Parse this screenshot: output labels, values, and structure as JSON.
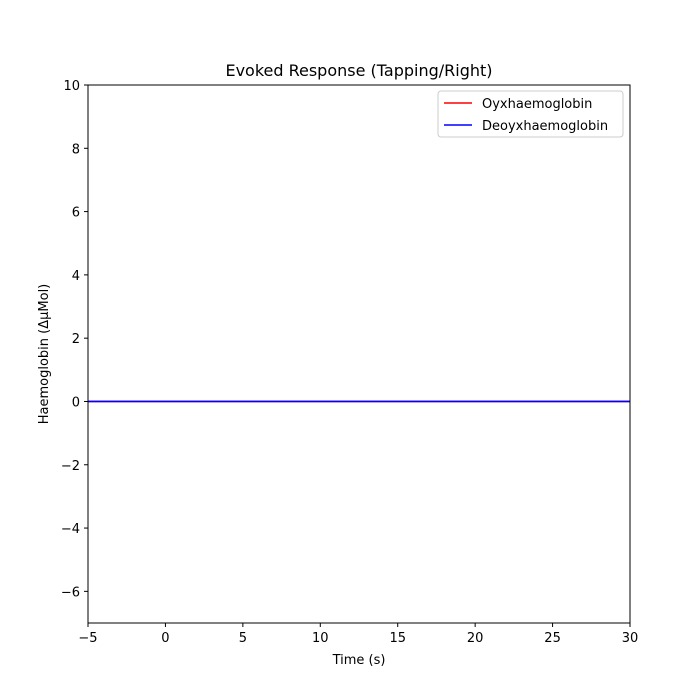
{
  "chart_data": {
    "type": "line",
    "title": "Evoked Response (Tapping/Right)",
    "xlabel": "Time (s)",
    "ylabel": "Haemoglobin (ΔμMol)",
    "xlim": [
      -5,
      30
    ],
    "ylim": [
      -7,
      10
    ],
    "xticks": [
      -5,
      0,
      5,
      10,
      15,
      20,
      25,
      30
    ],
    "yticks": [
      -6,
      -4,
      -2,
      0,
      2,
      4,
      6,
      8,
      10
    ],
    "xtick_labels": [
      "−5",
      "0",
      "5",
      "10",
      "15",
      "20",
      "25",
      "30"
    ],
    "ytick_labels": [
      "−6",
      "−4",
      "−2",
      "0",
      "2",
      "4",
      "6",
      "8",
      "10"
    ],
    "grid": false,
    "legend_position": "top-right",
    "series": [
      {
        "name": "Oyxhaemoglobin",
        "color": "#ff0000",
        "x": [
          -5,
          30
        ],
        "y": [
          0,
          0
        ]
      },
      {
        "name": "Deoyxhaemoglobin",
        "color": "#0000ff",
        "x": [
          -5,
          30
        ],
        "y": [
          0,
          0
        ]
      }
    ]
  }
}
